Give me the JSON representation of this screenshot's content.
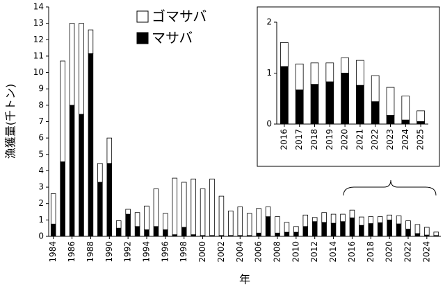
{
  "chart_data": [
    {
      "type": "bar",
      "stacked": true,
      "y_label": "漁獲量(千トン)",
      "x_label": "年",
      "categories": [
        "1984",
        null,
        "1986",
        null,
        "1988",
        null,
        "1990",
        null,
        "1992",
        null,
        "1994",
        null,
        "1996",
        null,
        "1998",
        null,
        "2000",
        null,
        "2002",
        null,
        "2004",
        null,
        "2006",
        null,
        "2008",
        null,
        "2010",
        null,
        "2012",
        null,
        "2014",
        null,
        "2016",
        null,
        "2018",
        null,
        "2020",
        null,
        "2022",
        null,
        "2024",
        null
      ],
      "series": [
        {
          "name": "ゴマサバ",
          "color": "#ffffff",
          "values": [
            1.85,
            6.15,
            5.0,
            5.55,
            1.45,
            1.15,
            1.55,
            0.45,
            0.3,
            0.85,
            1.45,
            2.3,
            1.0,
            3.45,
            2.75,
            3.4,
            2.85,
            3.45,
            2.4,
            1.5,
            1.75,
            1.35,
            1.5,
            0.6,
            1.0,
            0.6,
            0.35,
            0.7,
            0.25,
            0.6,
            0.55,
            0.45,
            0.47,
            0.51,
            0.42,
            0.37,
            0.3,
            0.49,
            0.51,
            0.55,
            0.47,
            0.21
          ]
        },
        {
          "name": "マサバ",
          "color": "#000000",
          "values": [
            0.75,
            4.55,
            8.0,
            7.45,
            11.15,
            3.3,
            4.45,
            0.5,
            1.35,
            0.6,
            0.4,
            0.6,
            0.4,
            0.1,
            0.55,
            0.1,
            0.05,
            0.05,
            0.05,
            0.05,
            0.05,
            0.05,
            0.2,
            1.2,
            0.2,
            0.25,
            0.25,
            0.6,
            0.9,
            0.85,
            0.8,
            0.9,
            1.13,
            0.67,
            0.78,
            0.83,
            1.0,
            0.76,
            0.44,
            0.17,
            0.08,
            0.05
          ]
        }
      ],
      "ylim": [
        0,
        14
      ],
      "yticks": [
        0,
        1,
        2,
        3,
        4,
        5,
        6,
        7,
        8,
        9,
        10,
        11,
        12,
        13,
        14
      ]
    },
    {
      "type": "bar",
      "stacked": true,
      "categories": [
        "2016",
        "2017",
        "2018",
        "2019",
        "2020",
        "2021",
        "2022",
        "2023",
        "2024",
        "2025"
      ],
      "series": [
        {
          "name": "ゴマサバ",
          "color": "#ffffff",
          "values": [
            0.47,
            0.51,
            0.42,
            0.37,
            0.3,
            0.49,
            0.51,
            0.55,
            0.47,
            0.21
          ]
        },
        {
          "name": "マサバ",
          "color": "#000000",
          "values": [
            1.13,
            0.67,
            0.78,
            0.83,
            1.0,
            0.76,
            0.44,
            0.17,
            0.08,
            0.05
          ]
        }
      ],
      "ylim": [
        0,
        2
      ],
      "yticks": [
        0,
        1,
        2
      ]
    }
  ]
}
